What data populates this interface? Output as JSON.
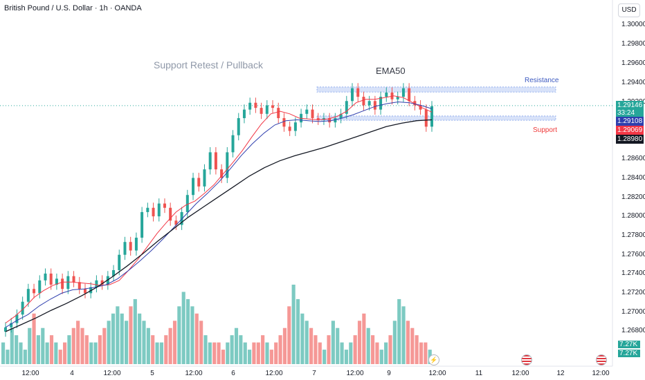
{
  "header": {
    "title": "British Pound / U.S. Dollar · 1h · OANDA",
    "currency": "USD"
  },
  "y_axis_ticks": [
    "1.30000",
    "1.29800",
    "1.29600",
    "1.29400",
    "1.29200",
    "1.28600",
    "1.28400",
    "1.28200",
    "1.28000",
    "1.27800",
    "1.27600",
    "1.27400",
    "1.27200",
    "1.27000",
    "1.26800"
  ],
  "x_axis_ticks": [
    "12:00",
    "4",
    "12:00",
    "5",
    "12:00",
    "6",
    "12:00",
    "7",
    "12:00",
    "9",
    "12:00",
    "11",
    "12:00",
    "12",
    "12:00"
  ],
  "annotations": {
    "support_retest": "Support Retest / Pullback",
    "ema50": "EMA50",
    "resistance": "Resistance",
    "support": "Support"
  },
  "price_badges": {
    "last_price": "1.29146",
    "countdown": "33:24",
    "ema_blue": "1.29108",
    "ema_red": "1.29069",
    "ema50": "1.28980"
  },
  "volume_badges": {
    "vol1": "7.27K",
    "vol2": "7.27K"
  },
  "colors": {
    "up": "#26a69a",
    "down": "#ef5350",
    "ema_fast": "#f23645",
    "ema_mid": "#2f3fae",
    "ema50": "#131722",
    "zone": "#3d6fe0"
  },
  "icons": {
    "event": "lightning-icon",
    "flags": [
      "us-flag-icon",
      "us-flag-icon"
    ]
  },
  "chart_data": {
    "type": "candlestick",
    "title": "British Pound / U.S. Dollar · 1h · OANDA",
    "y_range": [
      1.265,
      1.301
    ],
    "resistance_zone": [
      1.29305,
      1.29365
    ],
    "support_zone": [
      1.28975,
      1.29025
    ],
    "last_price": 1.29146,
    "series": [
      {
        "name": "Price",
        "values": [
          1.2655,
          1.266,
          1.267,
          1.2685,
          1.27,
          1.2695,
          1.271,
          1.2718,
          1.2705,
          1.2712,
          1.27,
          1.2715,
          1.2708,
          1.27,
          1.2695,
          1.2702,
          1.271,
          1.2705,
          1.2715,
          1.2722,
          1.274,
          1.2755,
          1.2745,
          1.276,
          1.279,
          1.2795,
          1.2785,
          1.28,
          1.2795,
          1.278,
          1.2775,
          1.279,
          1.281,
          1.283,
          1.282,
          1.284,
          1.286,
          1.284,
          1.283,
          1.286,
          1.288,
          1.29,
          1.291,
          1.2918,
          1.2912,
          1.2905,
          1.2915,
          1.2912,
          1.29,
          1.289,
          1.2885,
          1.2895,
          1.2905,
          1.291,
          1.29,
          1.2898,
          1.29,
          1.2895,
          1.29,
          1.2905,
          1.292,
          1.2935,
          1.2925,
          1.2915,
          1.292,
          1.291,
          1.2925,
          1.293,
          1.2922,
          1.2925,
          1.2935,
          1.292,
          1.2915,
          1.291,
          1.289,
          1.2914
        ]
      },
      {
        "name": "EMA fast",
        "values": [
          1.266,
          1.2668,
          1.2678,
          1.269,
          1.2698,
          1.2704,
          1.2708,
          1.2708,
          1.2707,
          1.2706,
          1.2704,
          1.2705,
          1.271,
          1.2722,
          1.2735,
          1.275,
          1.2765,
          1.2778,
          1.279,
          1.2798,
          1.2803,
          1.2812,
          1.2822,
          1.2835,
          1.2848,
          1.2862,
          1.2878,
          1.2893,
          1.2905,
          1.2908,
          1.2905,
          1.29,
          1.2899,
          1.2898,
          1.2899,
          1.2902,
          1.2908,
          1.2918,
          1.2922,
          1.2922,
          1.2924,
          1.2926,
          1.2924,
          1.2918,
          1.2912,
          1.2907
        ]
      },
      {
        "name": "EMA mid",
        "values": [
          1.2655,
          1.2663,
          1.267,
          1.268,
          1.2688,
          1.2695,
          1.2699,
          1.27,
          1.2702,
          1.2705,
          1.2712,
          1.2722,
          1.2733,
          1.2745,
          1.2758,
          1.2772,
          1.2786,
          1.28,
          1.2812,
          1.2825,
          1.284,
          1.2856,
          1.287,
          1.2882,
          1.2892,
          1.2897,
          1.2898,
          1.2897,
          1.2896,
          1.2897,
          1.29,
          1.2904,
          1.2909,
          1.2914,
          1.2917,
          1.2919,
          1.2918,
          1.2915,
          1.2911
        ]
      },
      {
        "name": "EMA50",
        "values": [
          1.265,
          1.2658,
          1.2666,
          1.2675,
          1.2683,
          1.2692,
          1.2702,
          1.2714,
          1.2727,
          1.2741,
          1.2756,
          1.277,
          1.2784,
          1.2796,
          1.2808,
          1.282,
          1.2832,
          1.2842,
          1.285,
          1.2856,
          1.2861,
          1.2866,
          1.2872,
          1.2878,
          1.2884,
          1.289,
          1.2894,
          1.2897,
          1.2898
        ]
      }
    ],
    "volume": [
      3,
      2,
      5,
      4,
      3,
      2,
      5,
      7,
      4,
      5,
      3,
      4,
      3,
      2,
      3,
      4,
      5,
      6,
      5,
      4,
      3,
      3,
      4,
      5,
      6,
      7,
      8,
      7,
      6,
      8,
      9,
      7,
      6,
      5,
      4,
      3,
      3,
      4,
      5,
      6,
      8,
      10,
      9,
      8,
      7,
      6,
      4,
      3,
      3,
      3,
      2,
      3,
      4,
      5,
      4,
      3,
      2,
      3,
      3,
      4,
      3,
      2,
      3,
      4,
      5,
      8,
      11,
      9,
      7,
      6,
      5,
      4,
      3,
      2,
      4,
      6,
      5,
      3,
      2,
      3,
      4,
      6,
      7,
      5,
      4,
      3,
      2,
      3,
      4,
      6,
      9,
      8,
      6,
      5,
      4,
      3,
      3,
      2
    ]
  }
}
